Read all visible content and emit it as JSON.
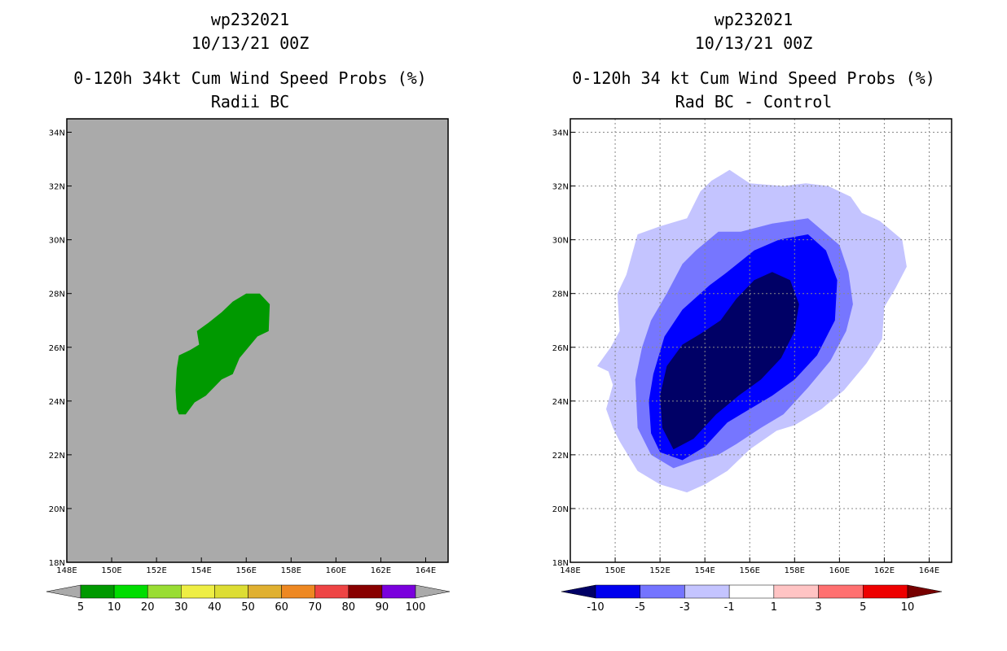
{
  "chart_data": [
    {
      "type": "filled-contour-map",
      "title_lines": [
        "wp232021",
        "10/13/21 00Z",
        "0-120h 34kt Cum Wind Speed Probs (%)",
        "Radii BC"
      ],
      "background_color": "#aaaaaa",
      "grid": false,
      "xlim": [
        148,
        165
      ],
      "ylim": [
        18,
        34.5
      ],
      "x_ticks": [
        148,
        150,
        152,
        154,
        156,
        158,
        160,
        162,
        164
      ],
      "x_tick_labels": [
        "148E",
        "150E",
        "152E",
        "154E",
        "156E",
        "158E",
        "160E",
        "162E",
        "164E"
      ],
      "y_ticks": [
        18,
        20,
        22,
        24,
        26,
        28,
        30,
        32,
        34
      ],
      "y_tick_labels": [
        "18N",
        "20N",
        "22N",
        "24N",
        "26N",
        "28N",
        "30N",
        "32N",
        "34N"
      ],
      "regions": [
        {
          "name": "prob-5-10",
          "color": "#009900",
          "lonlat": [
            [
              153.0,
              23.5
            ],
            [
              153.3,
              23.5
            ],
            [
              153.7,
              23.95
            ],
            [
              154.2,
              24.2
            ],
            [
              154.9,
              24.8
            ],
            [
              155.4,
              25.0
            ],
            [
              155.7,
              25.6
            ],
            [
              156.2,
              26.1
            ],
            [
              156.5,
              26.4
            ],
            [
              157.0,
              26.6
            ],
            [
              157.05,
              27.6
            ],
            [
              156.6,
              28.0
            ],
            [
              156.0,
              28.0
            ],
            [
              155.4,
              27.7
            ],
            [
              154.9,
              27.3
            ],
            [
              154.3,
              26.9
            ],
            [
              153.8,
              26.6
            ],
            [
              153.9,
              26.1
            ],
            [
              153.5,
              25.9
            ],
            [
              153.0,
              25.7
            ],
            [
              152.9,
              25.2
            ],
            [
              152.85,
              24.4
            ],
            [
              152.9,
              23.7
            ]
          ]
        }
      ],
      "colorbar": {
        "labels": [
          "5",
          "10",
          "20",
          "30",
          "40",
          "50",
          "60",
          "70",
          "80",
          "90",
          "100"
        ],
        "colors": [
          "#009900",
          "#00dd00",
          "#99dd33",
          "#eeee44",
          "#dddd33",
          "#e0b030",
          "#ee8822",
          "#ee4444",
          "#880000",
          "#7a00dd"
        ],
        "under_color": "#aaaaaa",
        "over_color": "#aaaaaa"
      }
    },
    {
      "type": "filled-contour-map",
      "title_lines": [
        "wp232021",
        "10/13/21 00Z",
        "0-120h 34 kt Cum Wind Speed Probs (%)",
        "Rad BC - Control"
      ],
      "background_color": "#ffffff",
      "grid": true,
      "xlim": [
        148,
        165
      ],
      "ylim": [
        18,
        34.5
      ],
      "x_ticks": [
        148,
        150,
        152,
        154,
        156,
        158,
        160,
        162,
        164
      ],
      "x_tick_labels": [
        "148E",
        "150E",
        "152E",
        "154E",
        "156E",
        "158E",
        "160E",
        "162E",
        "164E"
      ],
      "y_ticks": [
        18,
        20,
        22,
        24,
        26,
        28,
        30,
        32,
        34
      ],
      "y_tick_labels": [
        "18N",
        "20N",
        "22N",
        "24N",
        "26N",
        "28N",
        "30N",
        "32N",
        "34N"
      ],
      "regions": [
        {
          "name": "diff-minus-3-to-minus-1",
          "color": "#c4c4ff",
          "lonlat": [
            [
              150.2,
              22.5
            ],
            [
              151.0,
              21.4
            ],
            [
              152.0,
              20.9
            ],
            [
              153.2,
              20.6
            ],
            [
              154.0,
              20.9
            ],
            [
              155.0,
              21.4
            ],
            [
              156.0,
              22.2
            ],
            [
              157.2,
              22.9
            ],
            [
              158.0,
              23.1
            ],
            [
              159.2,
              23.7
            ],
            [
              160.2,
              24.4
            ],
            [
              161.2,
              25.4
            ],
            [
              161.9,
              26.3
            ],
            [
              162.0,
              27.5
            ],
            [
              162.5,
              28.2
            ],
            [
              163.0,
              29.0
            ],
            [
              162.8,
              30.0
            ],
            [
              161.8,
              30.7
            ],
            [
              161.0,
              31.0
            ],
            [
              160.5,
              31.6
            ],
            [
              159.5,
              32.0
            ],
            [
              158.5,
              32.1
            ],
            [
              157.5,
              32.0
            ],
            [
              156.0,
              32.1
            ],
            [
              155.1,
              32.6
            ],
            [
              154.3,
              32.2
            ],
            [
              153.8,
              31.8
            ],
            [
              153.2,
              30.8
            ],
            [
              152.0,
              30.5
            ],
            [
              151.0,
              30.2
            ],
            [
              150.5,
              28.7
            ],
            [
              150.1,
              28.0
            ],
            [
              150.2,
              26.6
            ],
            [
              149.8,
              26.0
            ],
            [
              149.2,
              25.3
            ],
            [
              149.7,
              25.1
            ],
            [
              149.9,
              24.6
            ],
            [
              149.6,
              23.7
            ],
            [
              149.9,
              23.0
            ]
          ]
        },
        {
          "name": "diff-minus-5-to-minus-3",
          "color": "#7676ff",
          "lonlat": [
            [
              151.0,
              23.0
            ],
            [
              151.6,
              22.0
            ],
            [
              152.6,
              21.5
            ],
            [
              153.6,
              21.8
            ],
            [
              154.6,
              22.0
            ],
            [
              155.4,
              22.4
            ],
            [
              156.5,
              23.0
            ],
            [
              157.5,
              23.5
            ],
            [
              158.6,
              24.5
            ],
            [
              159.6,
              25.5
            ],
            [
              160.3,
              26.6
            ],
            [
              160.6,
              27.6
            ],
            [
              160.4,
              28.8
            ],
            [
              160.0,
              29.8
            ],
            [
              158.6,
              30.8
            ],
            [
              157.0,
              30.6
            ],
            [
              155.6,
              30.3
            ],
            [
              154.6,
              30.3
            ],
            [
              153.6,
              29.6
            ],
            [
              153.0,
              29.1
            ],
            [
              152.3,
              28.0
            ],
            [
              151.6,
              27.0
            ],
            [
              151.2,
              26.0
            ],
            [
              150.9,
              24.8
            ]
          ]
        },
        {
          "name": "diff-minus-10-to-minus-5",
          "color": "#0000ff",
          "lonlat": [
            [
              151.6,
              22.8
            ],
            [
              152.0,
              22.1
            ],
            [
              153.0,
              21.8
            ],
            [
              154.0,
              22.3
            ],
            [
              155.0,
              23.2
            ],
            [
              156.0,
              23.7
            ],
            [
              157.0,
              24.2
            ],
            [
              158.0,
              24.8
            ],
            [
              159.0,
              25.7
            ],
            [
              159.8,
              27.0
            ],
            [
              159.9,
              28.5
            ],
            [
              159.4,
              29.6
            ],
            [
              158.6,
              30.2
            ],
            [
              157.3,
              30.0
            ],
            [
              156.2,
              29.6
            ],
            [
              155.0,
              28.8
            ],
            [
              154.2,
              28.3
            ],
            [
              153.0,
              27.4
            ],
            [
              152.2,
              26.4
            ],
            [
              151.7,
              25.0
            ],
            [
              151.5,
              24.0
            ]
          ]
        },
        {
          "name": "diff-below-minus-10",
          "color": "#000066",
          "lonlat": [
            [
              152.1,
              23.0
            ],
            [
              152.6,
              22.2
            ],
            [
              153.5,
              22.6
            ],
            [
              154.5,
              23.5
            ],
            [
              155.5,
              24.2
            ],
            [
              156.5,
              24.8
            ],
            [
              157.4,
              25.6
            ],
            [
              158.0,
              26.6
            ],
            [
              158.2,
              27.6
            ],
            [
              157.8,
              28.5
            ],
            [
              157.0,
              28.8
            ],
            [
              156.2,
              28.5
            ],
            [
              155.4,
              27.8
            ],
            [
              154.7,
              27.0
            ],
            [
              153.8,
              26.5
            ],
            [
              153.0,
              26.1
            ],
            [
              152.3,
              25.3
            ],
            [
              152.0,
              24.2
            ]
          ]
        }
      ],
      "colorbar": {
        "labels": [
          "-10",
          "-5",
          "-3",
          "-1",
          "1",
          "3",
          "5",
          "10"
        ],
        "colors": [
          "#0000ee",
          "#7474ff",
          "#c4c4ff",
          "#ffffff",
          "#ffc4c4",
          "#ff7070",
          "#ee0000"
        ],
        "under_color": "#000066",
        "over_color": "#770000"
      }
    }
  ]
}
